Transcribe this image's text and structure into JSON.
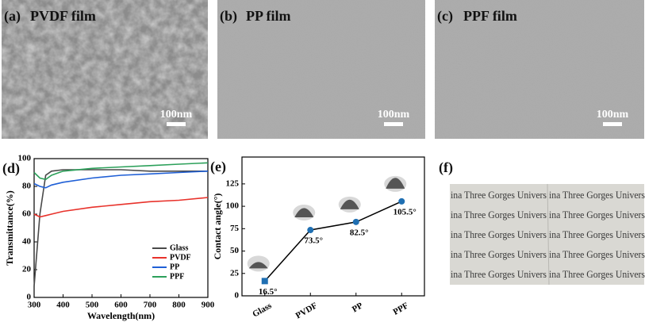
{
  "panels": [
    {
      "label": "(a)",
      "title": "PVDF film",
      "scale": "100nm"
    },
    {
      "label": "(b)",
      "title": "PP film",
      "scale": "100nm"
    },
    {
      "label": "(c)",
      "title": "PPF film",
      "scale": "100nm"
    }
  ],
  "chart_data": [
    {
      "type": "line",
      "label": "(d)",
      "x_label": "Wavelength(nm)",
      "y_label": "Transmittance(%)",
      "x": [
        300,
        320,
        340,
        360,
        400,
        500,
        600,
        700,
        800,
        900
      ],
      "xlim": [
        300,
        900
      ],
      "xticks": [
        300,
        400,
        500,
        600,
        700,
        800,
        900
      ],
      "ylim": [
        0,
        100
      ],
      "yticks": [
        0,
        20,
        40,
        60,
        80,
        100
      ],
      "legend": "lower right",
      "series": [
        {
          "name": "Glass",
          "color": "#4a4a4a",
          "values": [
            8,
            60,
            88,
            91,
            92,
            92,
            92,
            91,
            91,
            91
          ]
        },
        {
          "name": "PVDF",
          "color": "#e8322b",
          "values": [
            60,
            58,
            59,
            60,
            62,
            65,
            67,
            69,
            70,
            72
          ]
        },
        {
          "name": "PP",
          "color": "#1f5fd6",
          "values": [
            82,
            80,
            79,
            81,
            83,
            86,
            88,
            89,
            90,
            91
          ]
        },
        {
          "name": "PPF",
          "color": "#2ca05a",
          "values": [
            90,
            86,
            85,
            88,
            91,
            93,
            94,
            95,
            96,
            97
          ]
        }
      ]
    },
    {
      "type": "line",
      "label": "(e)",
      "y_label": "Contact angle(°)",
      "categories": [
        "Glass",
        "PVDF",
        "PP",
        "PPF"
      ],
      "values": [
        16.5,
        73.5,
        82.5,
        105.5
      ],
      "value_labels": [
        "16.5°",
        "73.5°",
        "82.5°",
        "105.5°"
      ],
      "color": "#1f6fb2",
      "ylim": [
        0,
        155
      ],
      "yticks": [
        0,
        25,
        50,
        75,
        100,
        125
      ]
    }
  ],
  "panel_f": {
    "label": "(f)",
    "rows": [
      [
        "ina Three Gorges Univers",
        "ina Three Gorges Univers"
      ],
      [
        "ina Three Gorges Univers",
        "ina Three Gorges Univers"
      ],
      [
        "ina Three Gorges Univers",
        "ina Three Gorges Univers"
      ],
      [
        "ina Three Gorges Univers",
        "ina Three Gorges Univers"
      ],
      [
        "ina Three Gorges Univers",
        "ina Three Gorges Univers"
      ]
    ]
  }
}
